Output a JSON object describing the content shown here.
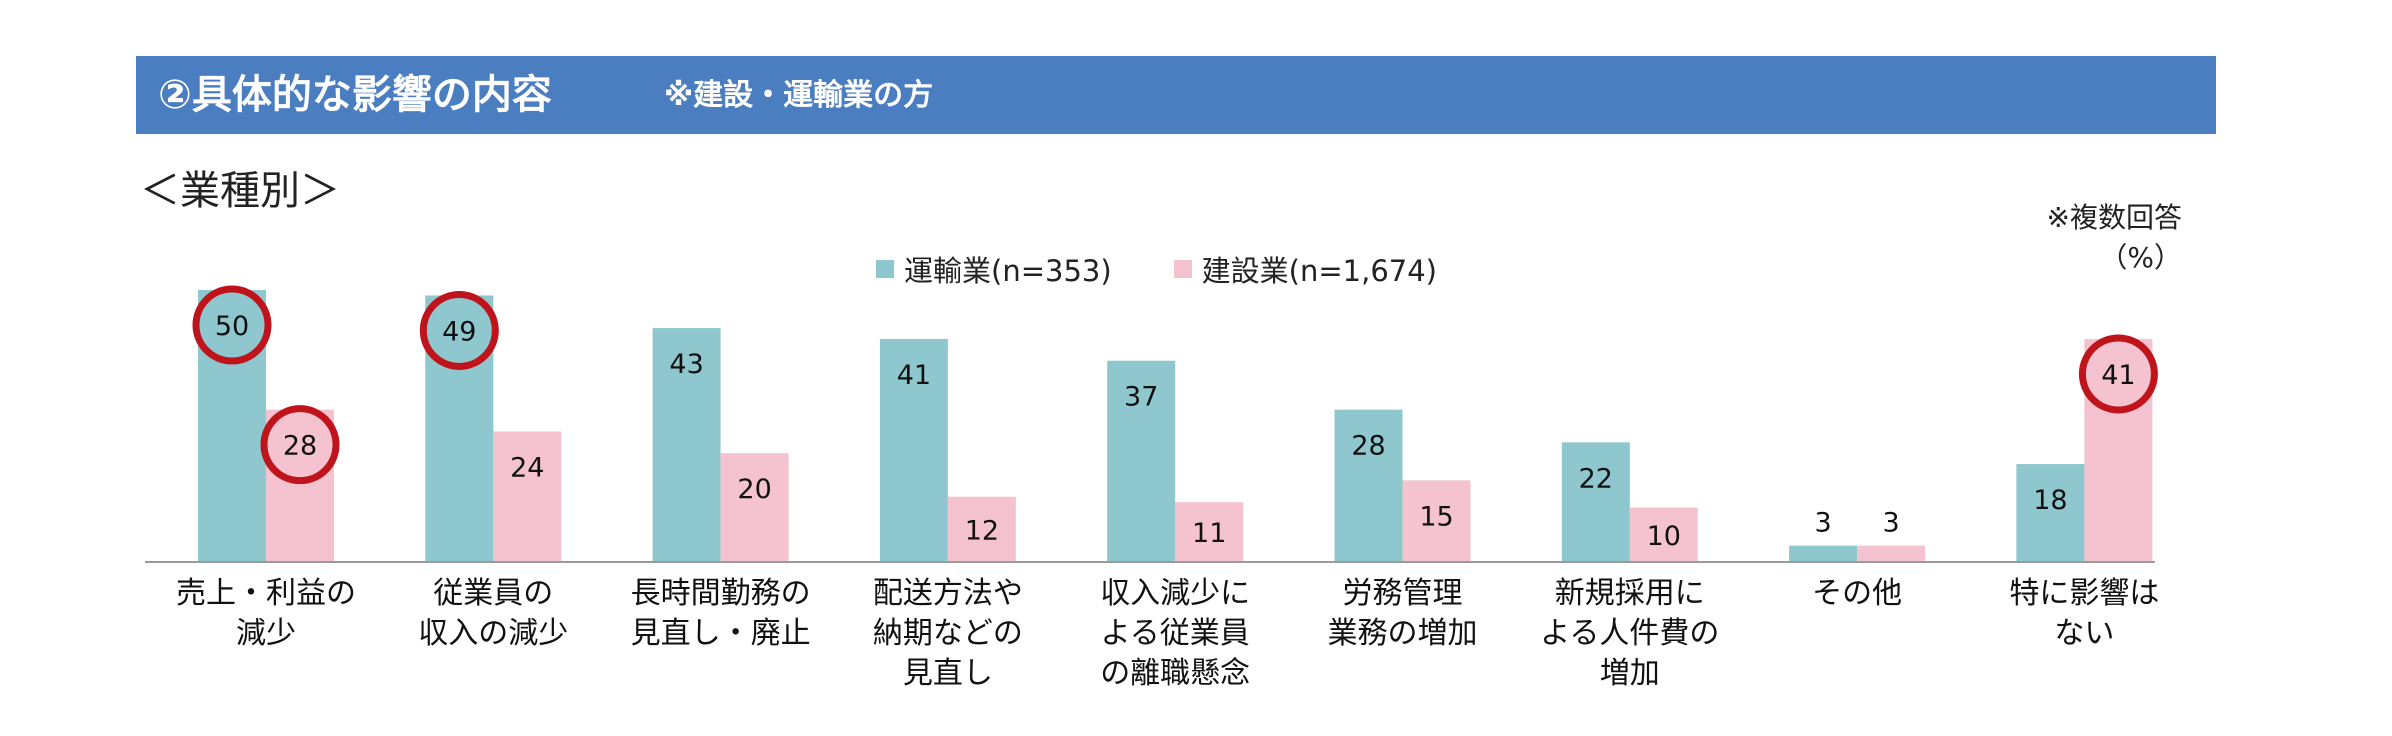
{
  "header": {
    "title": "②具体的な影響の内容",
    "note": "※建設・運輸業の方"
  },
  "subtitle": "＜業種別＞",
  "note": {
    "line1": "※複数回答",
    "line2": "（%）"
  },
  "colors": {
    "header_bg": "#4a7ec0",
    "series1": "#8ec7cd",
    "series2": "#f4c3cf",
    "highlight_circle": "#c0141c"
  },
  "chart_data": {
    "type": "bar",
    "categories": [
      [
        "売上・利益の",
        "減少"
      ],
      [
        "従業員の",
        "収入の減少"
      ],
      [
        "長時間勤務の",
        "見直し・廃止"
      ],
      [
        "配送方法や",
        "納期などの",
        "見直し"
      ],
      [
        "収入減少に",
        "よる従業員",
        "の離職懸念"
      ],
      [
        "労務管理",
        "業務の増加"
      ],
      [
        "新規採用に",
        "よる人件費の",
        "増加"
      ],
      [
        "その他"
      ],
      [
        "特に影響は",
        "ない"
      ]
    ],
    "series": [
      {
        "name": "運輸業(n=353)",
        "values": [
          50,
          49,
          43,
          41,
          37,
          28,
          22,
          3,
          18
        ]
      },
      {
        "name": "建設業(n=1,674)",
        "values": [
          28,
          24,
          20,
          12,
          11,
          15,
          10,
          3,
          41
        ]
      }
    ],
    "highlighted": [
      {
        "series": 0,
        "index": 0
      },
      {
        "series": 0,
        "index": 1
      },
      {
        "series": 1,
        "index": 0
      },
      {
        "series": 1,
        "index": 8
      }
    ],
    "ylim": [
      0,
      55
    ],
    "unit": "%",
    "grid": false,
    "legend_position": "top-center"
  }
}
